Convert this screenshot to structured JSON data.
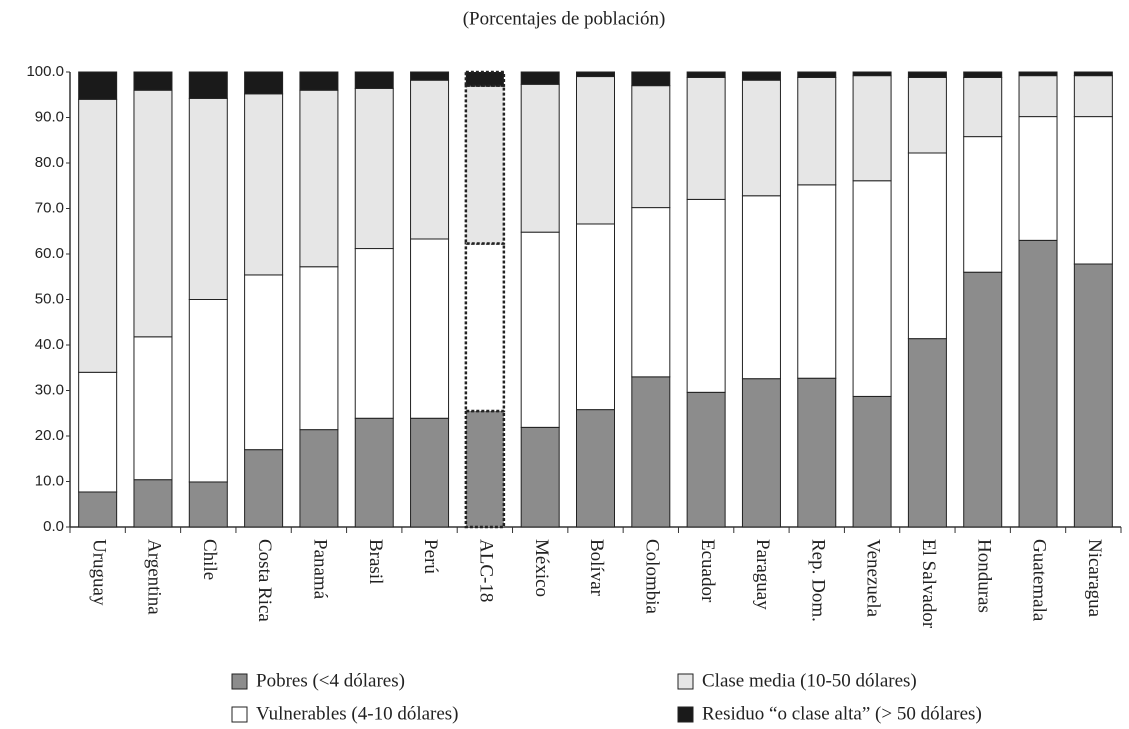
{
  "chart_data": {
    "type": "stacked_bar",
    "title": "(Porcentajes de población)",
    "categories": [
      "Uruguay",
      "Argentina",
      "Chile",
      "Costa Rica",
      "Panamá",
      "Brasil",
      "Perú",
      "ALC-18",
      "México",
      "Bolívar",
      "Colombia",
      "Ecuador",
      "Paraguay",
      "Rep. Dom.",
      "Venezuela",
      "El Salvador",
      "Honduras",
      "Guatemala",
      "Nicaragua"
    ],
    "series": [
      {
        "name": "Pobres (<4 dólares)",
        "color": "#8c8c8c",
        "values": [
          7.7,
          10.4,
          9.9,
          17,
          21.4,
          23.9,
          23.9,
          25.5,
          21.9,
          25.8,
          33,
          29.6,
          32.6,
          32.7,
          28.7,
          41.4,
          56,
          63,
          57.8
        ]
      },
      {
        "name": "Vulnerables (4-10 dólares)",
        "color": "#ffffff",
        "values": [
          26.3,
          31.4,
          40.1,
          38.4,
          35.8,
          37.3,
          39.4,
          36.8,
          42.9,
          40.8,
          37.2,
          42.4,
          40.2,
          42.5,
          47.4,
          40.8,
          29.8,
          27.2,
          32.4
        ]
      },
      {
        "name": "Clase media (10-50 dólares)",
        "color": "#e6e6e6",
        "values": [
          60,
          54.2,
          44.2,
          39.8,
          38.8,
          35.2,
          34.9,
          34.7,
          32.5,
          32.4,
          26.8,
          26.8,
          25.4,
          23.6,
          23.1,
          16.6,
          13,
          9,
          9
        ]
      },
      {
        "name": "Residuo “o clase alta” (> 50 dólares)",
        "color": "#1a1a1a",
        "values": [
          6,
          4,
          5.8,
          4.8,
          4,
          3.6,
          1.8,
          3,
          2.7,
          1,
          3,
          1.2,
          1.8,
          1.2,
          0.8,
          1.2,
          1.2,
          0.8,
          0.8
        ]
      }
    ],
    "highlight_index": 7,
    "ylim": [
      0,
      100
    ],
    "yticks": [
      {
        "value": 0,
        "label": "0.0"
      },
      {
        "value": 10,
        "label": "10.0"
      },
      {
        "value": 20,
        "label": "20.0"
      },
      {
        "value": 30,
        "label": "30.0"
      },
      {
        "value": 40,
        "label": "40.0"
      },
      {
        "value": 50,
        "label": "50.0"
      },
      {
        "value": 60,
        "label": "60.0"
      },
      {
        "value": 70,
        "label": "70.0"
      },
      {
        "value": 80,
        "label": "80.0"
      },
      {
        "value": 90,
        "label": "90.0"
      },
      {
        "value": 100,
        "label": "100.0"
      }
    ],
    "grid": false
  }
}
